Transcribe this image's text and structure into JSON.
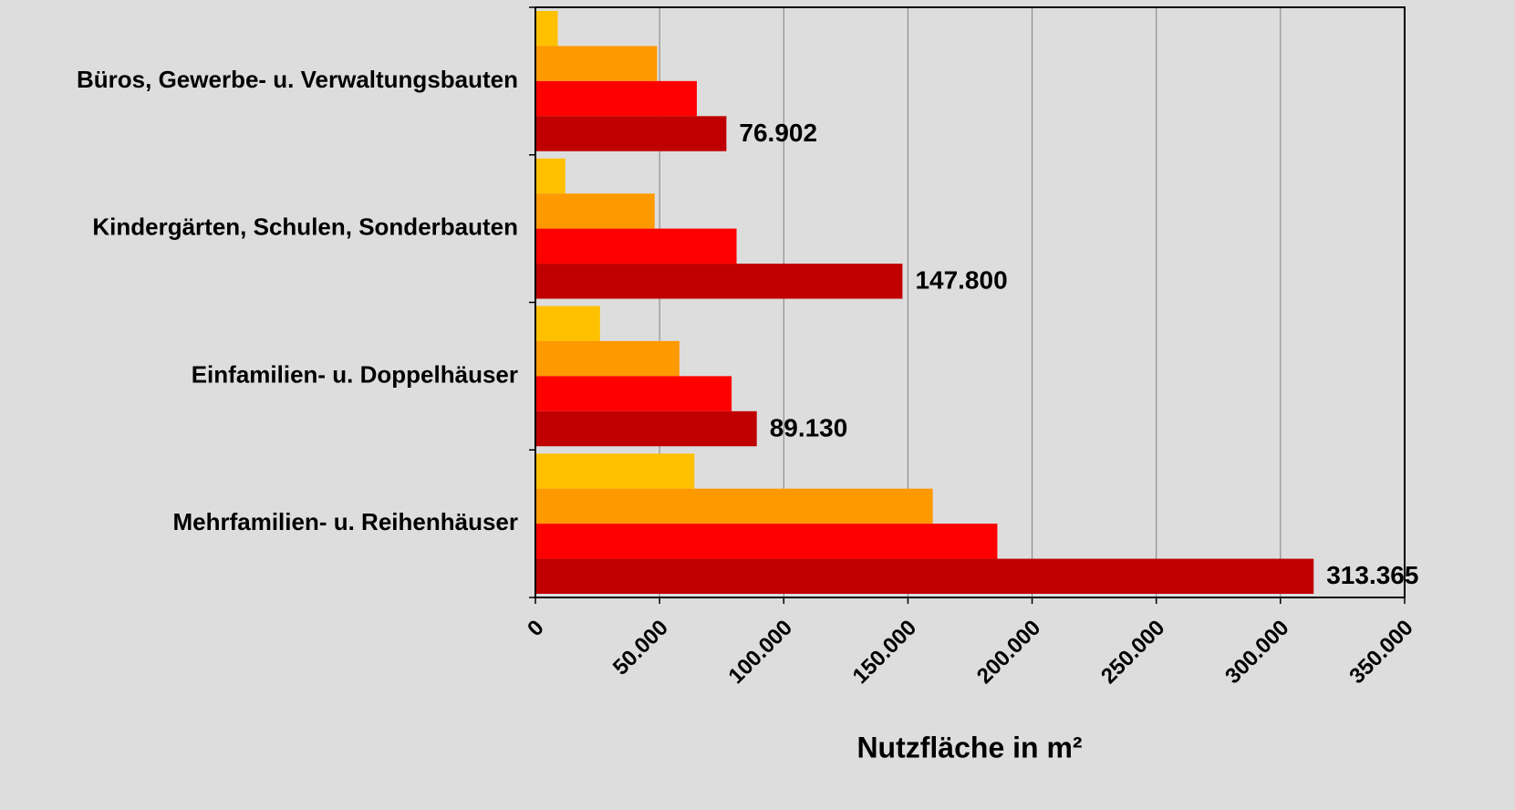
{
  "chart_data": {
    "type": "bar",
    "orientation": "horizontal",
    "categories": [
      "Büros, Gewerbe- u. Verwaltungsbauten",
      "Kindergärten, Schulen, Sonderbauten",
      "Einfamilien- u. Doppelhäuser",
      "Mehrfamilien- u. Reihenhäuser"
    ],
    "series": [
      {
        "color": "#ffc000",
        "values": [
          9000,
          12000,
          26000,
          64000
        ]
      },
      {
        "color": "#ff9900",
        "values": [
          49000,
          48000,
          58000,
          160000
        ]
      },
      {
        "color": "#ff0000",
        "values": [
          65000,
          81000,
          79000,
          186000
        ]
      },
      {
        "color": "#c00000",
        "values": [
          76902,
          147800,
          89130,
          313365
        ],
        "value_labels": [
          "76.902",
          "147.800",
          "89.130",
          "313.365"
        ]
      }
    ],
    "xlabel": "Nutzfläche in m²",
    "xlim": [
      0,
      350000
    ],
    "xticks": [
      0,
      {
        "value": 50000,
        "label": "50.000"
      },
      {
        "value": 100000,
        "label": "100.000"
      },
      {
        "value": 150000,
        "label": "150.000"
      },
      {
        "value": 200000,
        "label": "200.000"
      },
      {
        "value": 250000,
        "label": "250.000"
      },
      {
        "value": 300000,
        "label": "300.000"
      },
      {
        "value": 350000,
        "label": "350.000"
      }
    ],
    "grid": true
  }
}
